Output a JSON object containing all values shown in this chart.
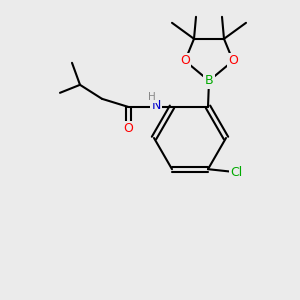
{
  "background_color": "#ebebeb",
  "bond_color": "#000000",
  "bond_width": 1.5,
  "atom_colors": {
    "N": "#0000cc",
    "O": "#ff0000",
    "B": "#00aa00",
    "Cl": "#00aa00",
    "C": "#000000",
    "H": "#666666"
  },
  "font_size": 9,
  "font_size_small": 7.5
}
